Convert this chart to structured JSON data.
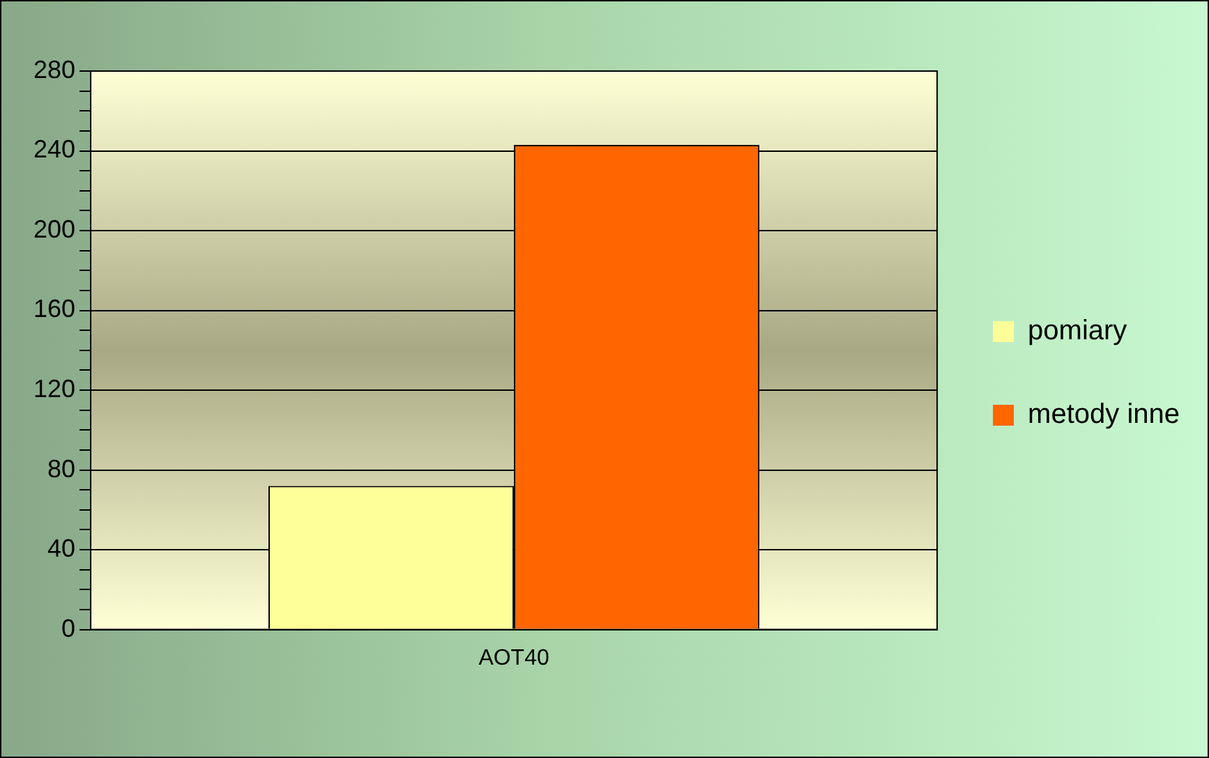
{
  "chart_data": {
    "type": "bar",
    "categories": [
      "AOT40"
    ],
    "series": [
      {
        "name": "pomiary",
        "color": "#ffff99",
        "values": [
          72
        ]
      },
      {
        "name": "metody inne",
        "color": "#ff6600",
        "values": [
          243
        ]
      }
    ],
    "ylim": [
      0,
      280
    ],
    "yticks": [
      0,
      {
        "value": 10,
        "label": null
      },
      {
        "value": 20,
        "label": null
      },
      {
        "value": 30,
        "label": null
      },
      40,
      {
        "value": 50,
        "label": null
      },
      {
        "value": 60,
        "label": null
      },
      {
        "value": 70,
        "label": null
      },
      80,
      {
        "value": 90,
        "label": null
      },
      {
        "value": 100,
        "label": null
      },
      {
        "value": 110,
        "label": null
      },
      120,
      {
        "value": 130,
        "label": null
      },
      {
        "value": 140,
        "label": null
      },
      {
        "value": 150,
        "label": null
      },
      160,
      {
        "value": 170,
        "label": null
      },
      {
        "value": 180,
        "label": null
      },
      {
        "value": 190,
        "label": null
      },
      200,
      {
        "value": 210,
        "label": null
      },
      {
        "value": 220,
        "label": null
      },
      {
        "value": 230,
        "label": null
      },
      240,
      {
        "value": 250,
        "label": null
      },
      {
        "value": 260,
        "label": null
      },
      {
        "value": 270,
        "label": null
      },
      280
    ],
    "grid": "y",
    "legend": "right"
  }
}
